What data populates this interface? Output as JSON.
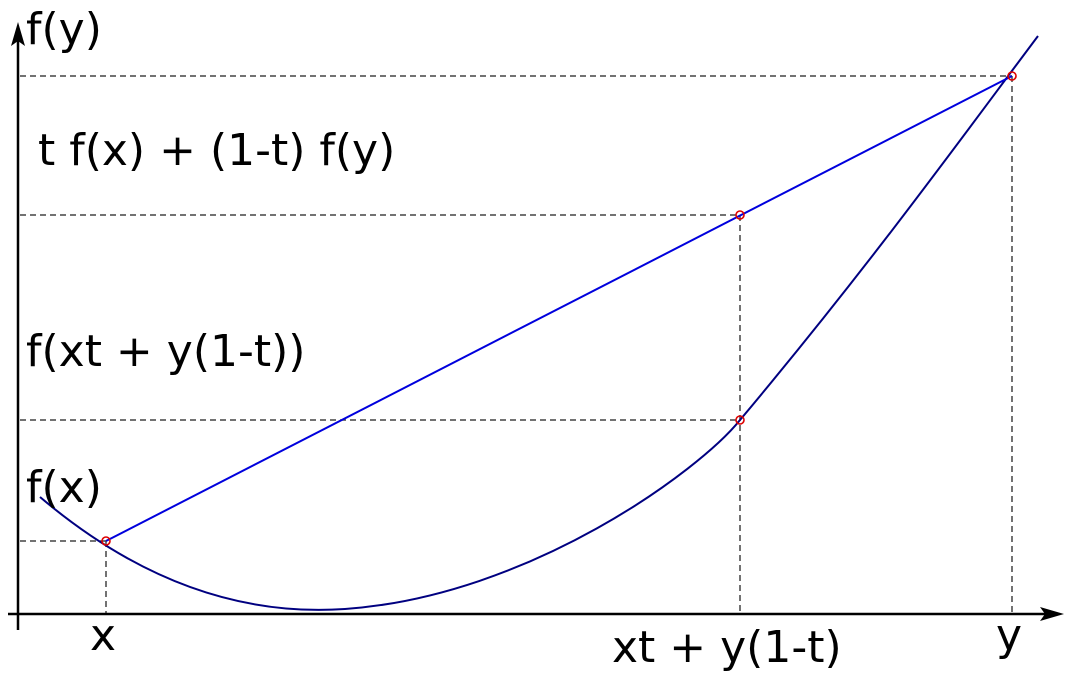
{
  "labels": {
    "y_axis_top": "f(y)",
    "chord_value": "t f(x) + (1-t) f(y)",
    "function_value": "f(xt + y(1-t))",
    "fx_value": "f(x)",
    "x_point": "x",
    "mid_point": "xt + y(1-t)",
    "y_point": "y"
  },
  "colors": {
    "curve": "#000080",
    "chord": "#0000dd",
    "markers": "#dd0000",
    "guides": "#444444",
    "axes": "#000000"
  }
}
